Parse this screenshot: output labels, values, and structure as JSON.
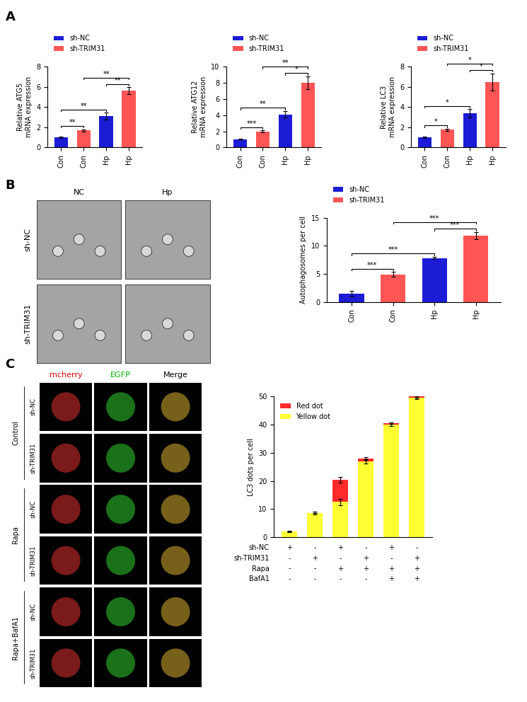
{
  "panel_labels": [
    "A",
    "B",
    "C"
  ],
  "chart_data": [
    {
      "type": "bar",
      "ylabel": "Relative ATG5\nmRNA expression",
      "categories": [
        "Con",
        "Con",
        "Hp",
        "Hp"
      ],
      "series": [
        {
          "name": "sh-NC",
          "color": "#1c1cd6",
          "values": [
            1.0,
            null,
            3.1,
            null
          ],
          "errors": [
            0.04,
            null,
            0.35,
            null
          ]
        },
        {
          "name": "sh-TRIM31",
          "color": "#ff5555",
          "values": [
            null,
            1.7,
            null,
            5.6
          ],
          "errors": [
            null,
            0.1,
            null,
            0.35
          ]
        }
      ],
      "ylim": [
        0,
        8
      ],
      "yticks": [
        0,
        2,
        4,
        6,
        8
      ],
      "legend": "upper left",
      "annotations": [
        {
          "from": 0,
          "to": 1,
          "text": "**"
        },
        {
          "from": 2,
          "to": 3,
          "text": "**"
        },
        {
          "from": 0,
          "to": 2,
          "text": "**"
        },
        {
          "from": 1,
          "to": 3,
          "text": "**"
        }
      ]
    },
    {
      "type": "bar",
      "ylabel": "Relative ATG12\nmRNA expression",
      "categories": [
        "Con",
        "Con",
        "Hp",
        "Hp"
      ],
      "series": [
        {
          "name": "sh-NC",
          "color": "#1c1cd6",
          "values": [
            1.0,
            null,
            4.1,
            null
          ],
          "errors": [
            0.05,
            null,
            0.4,
            null
          ]
        },
        {
          "name": "sh-TRIM31",
          "color": "#ff5555",
          "values": [
            null,
            2.0,
            null,
            8.0
          ],
          "errors": [
            null,
            0.1,
            null,
            0.8
          ]
        }
      ],
      "ylim": [
        0,
        10
      ],
      "yticks": [
        0,
        2,
        4,
        6,
        8,
        10
      ],
      "legend": "upper left",
      "annotations": [
        {
          "from": 0,
          "to": 1,
          "text": "***"
        },
        {
          "from": 2,
          "to": 3,
          "text": "*"
        },
        {
          "from": 0,
          "to": 2,
          "text": "**"
        },
        {
          "from": 1,
          "to": 3,
          "text": "**"
        }
      ]
    },
    {
      "type": "bar",
      "ylabel": "Relative LC3\nmRNA expression",
      "categories": [
        "Con",
        "Con",
        "Hp",
        "Hp"
      ],
      "series": [
        {
          "name": "sh-NC",
          "color": "#1c1cd6",
          "values": [
            1.0,
            null,
            3.4,
            null
          ],
          "errors": [
            0.05,
            null,
            0.4,
            null
          ]
        },
        {
          "name": "sh-TRIM31",
          "color": "#ff5555",
          "values": [
            null,
            1.75,
            null,
            6.5
          ],
          "errors": [
            null,
            0.1,
            null,
            0.85
          ]
        }
      ],
      "ylim": [
        0,
        8
      ],
      "yticks": [
        0,
        2,
        4,
        6,
        8
      ],
      "legend": "upper left",
      "annotations": [
        {
          "from": 0,
          "to": 1,
          "text": "*"
        },
        {
          "from": 2,
          "to": 3,
          "text": "*"
        },
        {
          "from": 0,
          "to": 2,
          "text": "*"
        },
        {
          "from": 1,
          "to": 3,
          "text": "*"
        }
      ]
    },
    {
      "type": "bar",
      "ylabel": "Autophagosomes per cell",
      "categories": [
        "Con",
        "Con",
        "Hp",
        "Hp"
      ],
      "series": [
        {
          "name": "sh-NC",
          "color": "#1c1cd6",
          "values": [
            1.4,
            null,
            7.8,
            null
          ],
          "errors": [
            0.5,
            null,
            0.2,
            null
          ]
        },
        {
          "name": "sh-TRIM31",
          "color": "#ff5555",
          "values": [
            null,
            4.9,
            null,
            11.8
          ],
          "errors": [
            null,
            0.4,
            null,
            0.6
          ]
        }
      ],
      "ylim": [
        0,
        15
      ],
      "yticks": [
        0,
        5,
        10,
        15
      ],
      "legend": "upper left",
      "annotations": [
        {
          "from": 0,
          "to": 1,
          "text": "***"
        },
        {
          "from": 2,
          "to": 3,
          "text": "***"
        },
        {
          "from": 0,
          "to": 2,
          "text": "***"
        },
        {
          "from": 1,
          "to": 3,
          "text": "***"
        }
      ]
    },
    {
      "type": "bar",
      "stacked": true,
      "ylabel": "LC3 dots per cell",
      "categories": [
        null,
        null,
        null,
        null,
        null,
        null
      ],
      "series": [
        {
          "name": "Red dot",
          "color": "#ff2a2a",
          "values": [
            0,
            0,
            8,
            1,
            0.5,
            0.5
          ],
          "errors": [
            0,
            0,
            1.0,
            0.5,
            0.3,
            0.3
          ]
        },
        {
          "name": "Yellow dot",
          "color": "#ffff33",
          "values": [
            2,
            8.5,
            12.5,
            27,
            40,
            49.5
          ],
          "errors": [
            0.3,
            0.5,
            1.2,
            0.8,
            0.4,
            0.5
          ]
        }
      ],
      "ylim": [
        0,
        50
      ],
      "yticks": [
        0,
        10,
        20,
        30,
        40,
        50
      ],
      "legend": "upper left",
      "conditions": [
        {
          "name": "sh-NC",
          "marks": [
            "+",
            "-",
            "+",
            "-",
            "+",
            "-"
          ]
        },
        {
          "name": "sh-TRIM31",
          "marks": [
            "-",
            "+",
            "-",
            "+",
            "-",
            "+"
          ]
        },
        {
          "name": "Rapa",
          "marks": [
            "-",
            "-",
            "+",
            "+",
            "+",
            "+"
          ]
        },
        {
          "name": "BafA1",
          "marks": [
            "-",
            "-",
            "-",
            "-",
            "+",
            "+"
          ]
        }
      ]
    }
  ],
  "images": {
    "B": {
      "columns": [
        "NC",
        "Hp"
      ],
      "rows": [
        "sh-NC",
        "sh-TRIM31"
      ]
    },
    "C": {
      "columns": [
        "mcherry",
        "EGFP",
        "Merge"
      ],
      "groups": [
        {
          "name": "Control",
          "rows": [
            "sh-NC",
            "sh-TRIM31"
          ]
        },
        {
          "name": "Rapa",
          "rows": [
            "sh-NC",
            "sh-TRIM31"
          ]
        },
        {
          "name": "Rapa+BafA1",
          "rows": [
            "sh-NC",
            "sh-TRIM31"
          ]
        }
      ]
    }
  }
}
